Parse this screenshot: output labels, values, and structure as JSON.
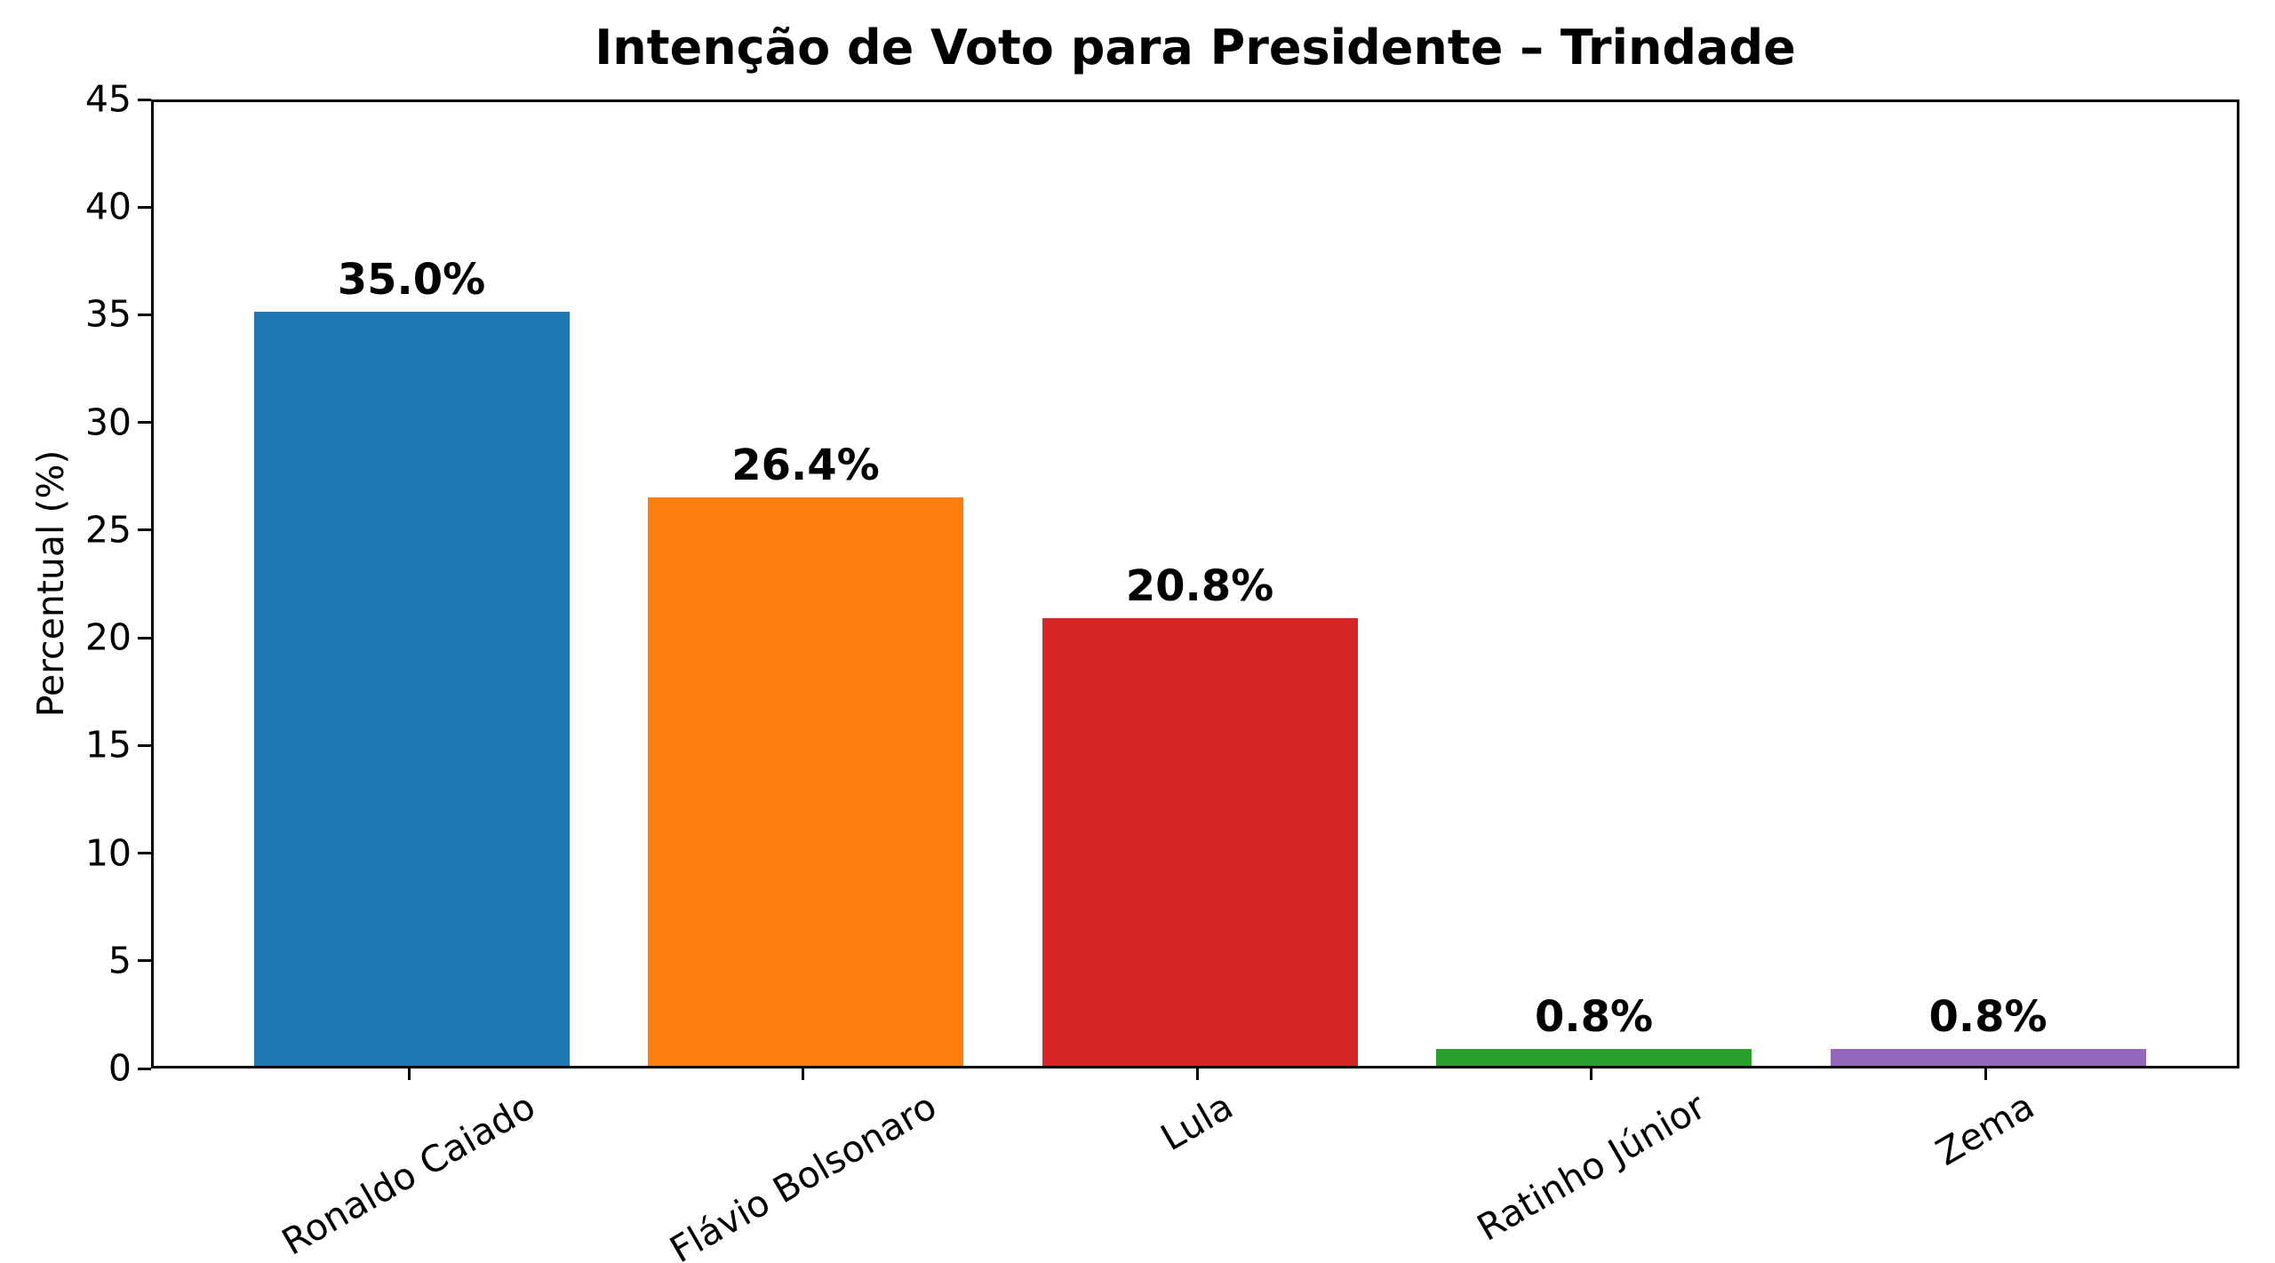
{
  "chart_data": {
    "type": "bar",
    "title": "Intenção de Voto para Presidente – Trindade",
    "xlabel": "",
    "ylabel": "Percentual (%)",
    "categories": [
      "Ronaldo Caiado",
      "Flávio Bolsonaro",
      "Lula",
      "Ratinho Júnior",
      "Zema"
    ],
    "values": [
      35.0,
      26.4,
      20.8,
      0.8,
      0.8
    ],
    "value_labels": [
      "35.0%",
      "26.4%",
      "20.8%",
      "0.8%",
      "0.8%"
    ],
    "bar_colors": [
      "#1f77b4",
      "#ff7f0e",
      "#d62728",
      "#2ca02c",
      "#9467bd"
    ],
    "ylim": [
      0,
      45
    ],
    "yticks": [
      0,
      5,
      10,
      15,
      20,
      25,
      30,
      35,
      40,
      45
    ],
    "xtick_rotation_deg": 30,
    "grid": false,
    "legend": null,
    "background_color": "#ffffff",
    "text_color": "#000000",
    "spine_color": "#000000"
  }
}
